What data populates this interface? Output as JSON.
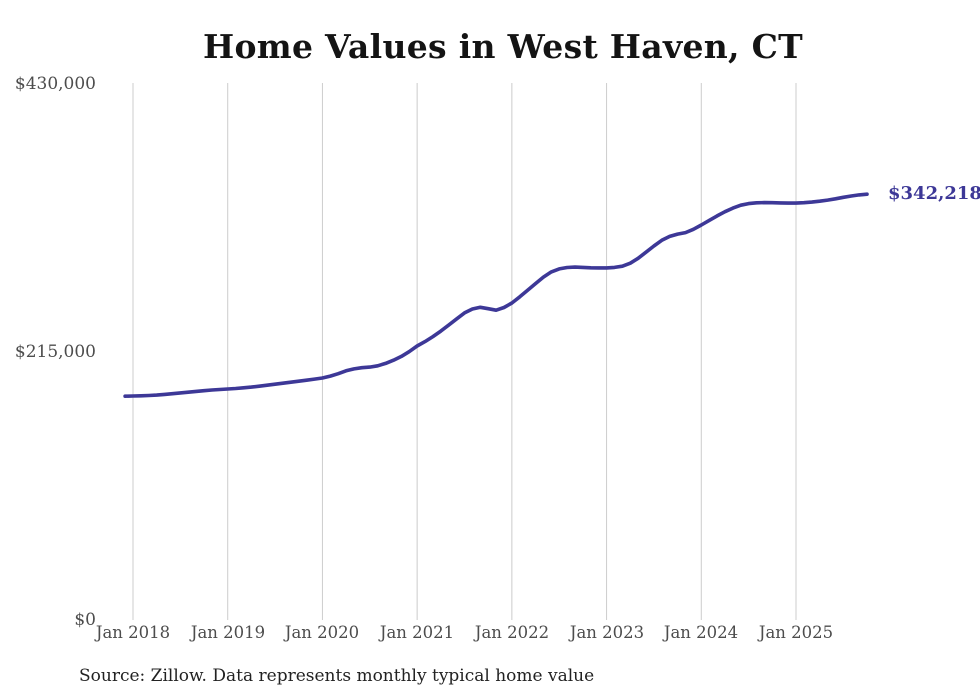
{
  "chart_data": {
    "type": "line",
    "title": "Home Values in West Haven, CT",
    "x": [
      "2017-12",
      "2018-01",
      "2018-02",
      "2018-03",
      "2018-04",
      "2018-05",
      "2018-06",
      "2018-07",
      "2018-08",
      "2018-09",
      "2018-10",
      "2018-11",
      "2018-12",
      "2019-01",
      "2019-02",
      "2019-03",
      "2019-04",
      "2019-05",
      "2019-06",
      "2019-07",
      "2019-08",
      "2019-09",
      "2019-10",
      "2019-11",
      "2019-12",
      "2020-01",
      "2020-02",
      "2020-03",
      "2020-04",
      "2020-05",
      "2020-06",
      "2020-07",
      "2020-08",
      "2020-09",
      "2020-10",
      "2020-11",
      "2020-12",
      "2021-01",
      "2021-02",
      "2021-03",
      "2021-04",
      "2021-05",
      "2021-06",
      "2021-07",
      "2021-08",
      "2021-09",
      "2021-10",
      "2021-11",
      "2021-12",
      "2022-01",
      "2022-02",
      "2022-03",
      "2022-04",
      "2022-05",
      "2022-06",
      "2022-07",
      "2022-08",
      "2022-09",
      "2022-10",
      "2022-11",
      "2022-12",
      "2023-01",
      "2023-02",
      "2023-03",
      "2023-04",
      "2023-05",
      "2023-06",
      "2023-07",
      "2023-08",
      "2023-09",
      "2023-10",
      "2023-11",
      "2023-12",
      "2024-01",
      "2024-02",
      "2024-03",
      "2024-04",
      "2024-05",
      "2024-06",
      "2024-07",
      "2024-08",
      "2024-09",
      "2024-10",
      "2024-11",
      "2024-12",
      "2025-01",
      "2025-02",
      "2025-03",
      "2025-04",
      "2025-05",
      "2025-06",
      "2025-07",
      "2025-08",
      "2025-09",
      "2025-10"
    ],
    "values": [
      179900,
      180000,
      180200,
      180400,
      180800,
      181300,
      181900,
      182500,
      183100,
      183700,
      184300,
      184900,
      185300,
      185700,
      186100,
      186600,
      187200,
      187900,
      188700,
      189500,
      190300,
      191100,
      191900,
      192700,
      193600,
      194500,
      196000,
      198000,
      200300,
      201800,
      202800,
      203300,
      204300,
      206200,
      208800,
      211900,
      215700,
      220200,
      223800,
      227800,
      232200,
      237000,
      242000,
      246800,
      250000,
      251300,
      250200,
      249000,
      251200,
      254800,
      259800,
      265000,
      270400,
      275600,
      279800,
      282200,
      283300,
      283600,
      283400,
      283100,
      283000,
      283000,
      283400,
      284400,
      286800,
      290700,
      295600,
      300600,
      305200,
      308300,
      310200,
      311400,
      314000,
      317500,
      321200,
      324800,
      328200,
      331100,
      333400,
      334700,
      335300,
      335500,
      335400,
      335200,
      335100,
      335100,
      335400,
      335900,
      336600,
      337500,
      338500,
      339700,
      340800,
      341700,
      342218
    ],
    "x_tick_labels": [
      "Jan 2018",
      "Jan 2019",
      "Jan 2020",
      "Jan 2021",
      "Jan 2022",
      "Jan 2023",
      "Jan 2024",
      "Jan 2025"
    ],
    "y_tick_labels": [
      "$0",
      "$215,000",
      "$430,000"
    ],
    "y_tick_values": [
      0,
      215000,
      430000
    ],
    "ylim": [
      0,
      430000
    ],
    "end_label": "$342,218",
    "end_value": 342218,
    "line_color": "#3d3897",
    "grid_color": "#cccccc",
    "grid": "vertical-lines-at-each-january",
    "legend": "none"
  },
  "footer": {
    "source": "Source: Zillow. Data represents monthly typical home value"
  }
}
